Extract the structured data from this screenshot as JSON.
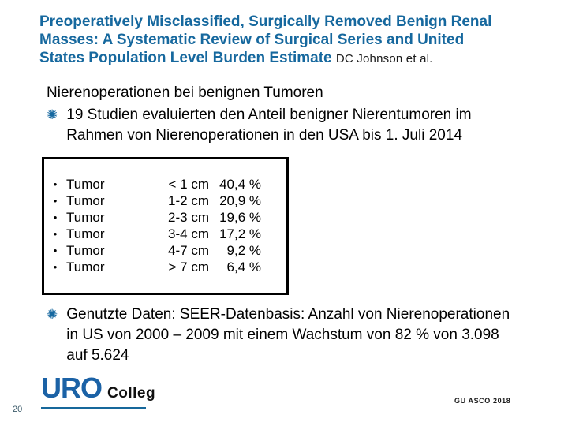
{
  "colors": {
    "title_blue": "#16689E",
    "bullet_blue": "#1668A0",
    "logo_blue": "#1B62A6",
    "underline_blue": "#17689B",
    "box_border": "#000000"
  },
  "icons": {
    "bullet_star": "✺",
    "row_dot": "•"
  },
  "title": {
    "line1": "Preoperatively Misclassified, Surgically Removed Benign Renal",
    "line2": "Masses: A Systematic Review of Surgical Series and United",
    "line3": "States Population Level Burden Estimate",
    "authors": "DC Johnson et al."
  },
  "content": {
    "heading": "Nierenoperationen bei benignen Tumoren",
    "bullet_studies": "19 Studien evaluierten den Anteil benigner Nierentumoren im Rahmen von Nierenoperationen in den USA bis 1. Juli 2014",
    "bullet_data": "Genutzte Daten: SEER-Datenbasis: Anzahl von Nierenoperationen in US von 2000 – 2009 mit einem Wachstum von 82 % von 3.098 auf 5.624"
  },
  "tumor_table": {
    "rows": [
      {
        "label": "Tumor",
        "size": "< 1 cm",
        "percent": "40,4 %"
      },
      {
        "label": "Tumor",
        "size": "1-2 cm",
        "percent": "20,9 %"
      },
      {
        "label": "Tumor",
        "size": "2-3 cm",
        "percent": "19,6 %"
      },
      {
        "label": "Tumor",
        "size": "3-4 cm",
        "percent": "17,2 %"
      },
      {
        "label": "Tumor",
        "size": "4-7 cm",
        "percent": "9,2 %"
      },
      {
        "label": "Tumor",
        "size": "> 7 cm",
        "percent": "6,4 %"
      }
    ]
  },
  "footer": {
    "logo_primary": "URO",
    "logo_secondary": "Colleg",
    "conference_label": "GU ASCO 2018",
    "page_number": "20"
  }
}
